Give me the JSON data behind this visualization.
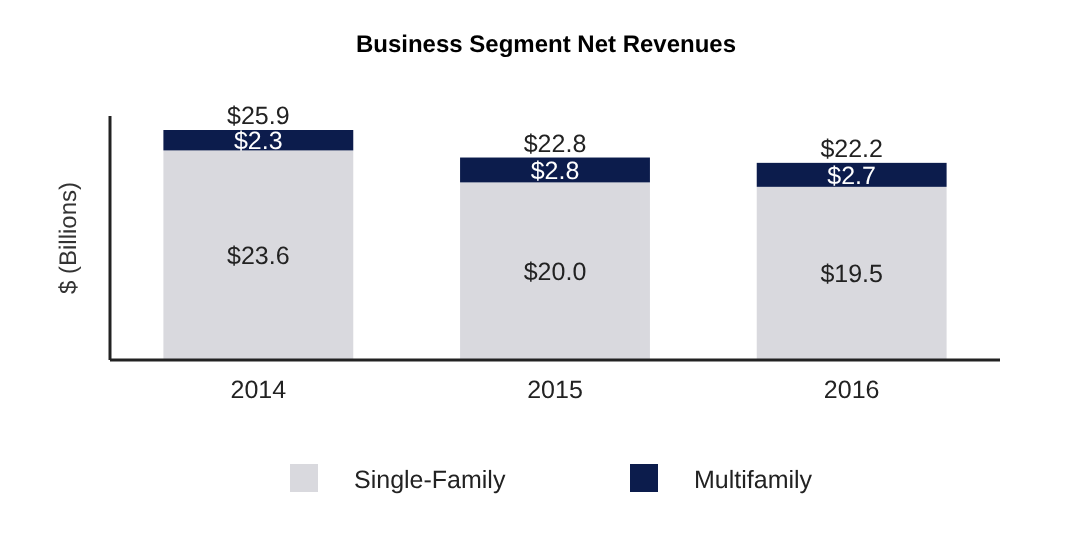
{
  "chart_data": {
    "type": "bar",
    "title": "Business Segment Net Revenues",
    "ylabel": "$ (Billions)",
    "categories": [
      "2014",
      "2015",
      "2016"
    ],
    "stacked": true,
    "legend": "bottom",
    "series": [
      {
        "name": "Single-Family",
        "color": "#d9d9de",
        "values": [
          23.6,
          20.0,
          19.5
        ],
        "value_labels": [
          "$23.6",
          "$20.0",
          "$19.5"
        ]
      },
      {
        "name": "Multifamily",
        "color": "#0c1c4c",
        "values": [
          2.3,
          2.8,
          2.7
        ],
        "value_labels": [
          "$2.3",
          "$2.8",
          "$2.7"
        ]
      }
    ],
    "totals": [
      "$25.9",
      "$22.8",
      "$22.2"
    ]
  }
}
